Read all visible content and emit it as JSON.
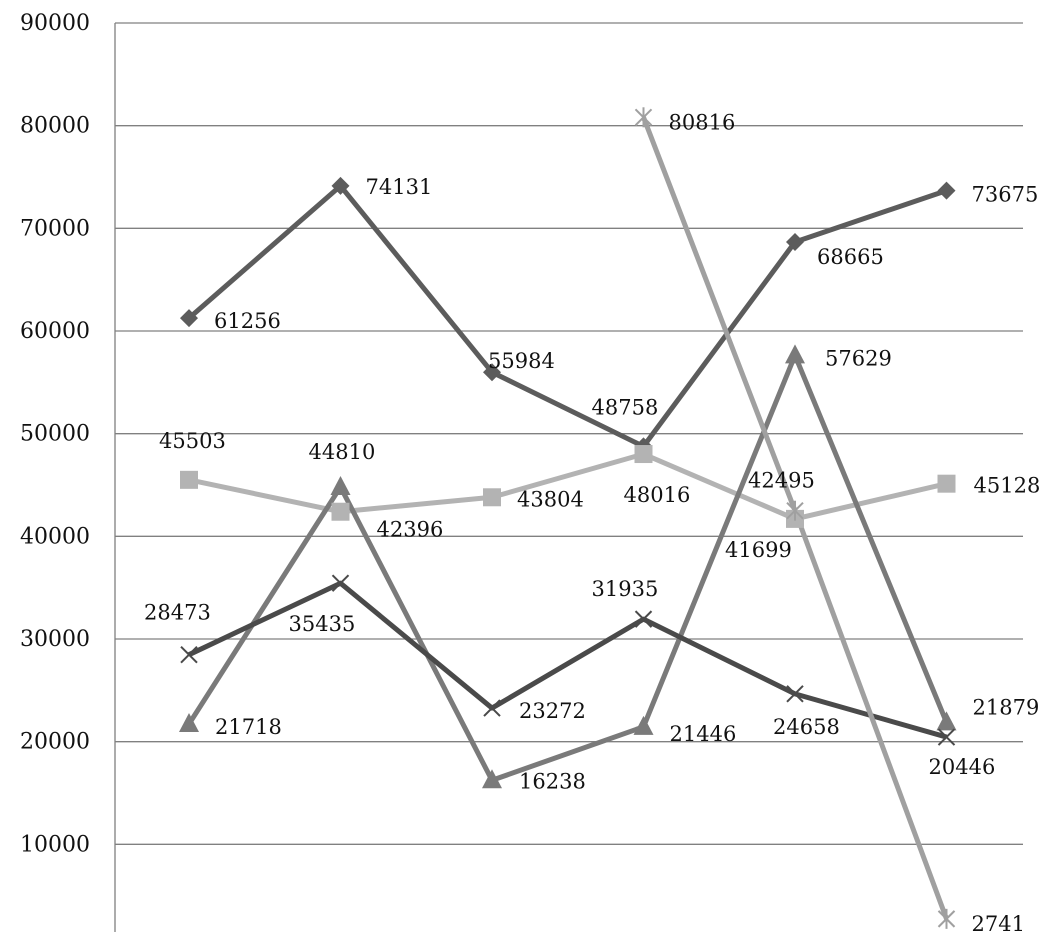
{
  "chart_data": {
    "type": "line",
    "title": "",
    "xlabel": "",
    "ylabel": "",
    "x_points": 6,
    "ylim": [
      0,
      90000
    ],
    "yticks": [
      "10000",
      "20000",
      "30000",
      "40000",
      "50000",
      "60000",
      "70000",
      "80000",
      "90000"
    ],
    "grid": true,
    "legend": "none",
    "series": [
      {
        "values": [
          61256,
          74131,
          55984,
          48758,
          68665,
          73675
        ],
        "marker": "diamond",
        "color": "#5c5c5c"
      },
      {
        "values": [
          45503,
          42396,
          43804,
          48016,
          41699,
          45128
        ],
        "marker": "square",
        "color": "#b3b3b3"
      },
      {
        "values": [
          21718,
          44810,
          16238,
          21446,
          57629,
          21879
        ],
        "marker": "triangle",
        "color": "#7a7a7a"
      },
      {
        "values": [
          28473,
          35435,
          23272,
          31935,
          24658,
          20446
        ],
        "marker": "x",
        "color": "#4a4a4a"
      },
      {
        "values": [
          null,
          null,
          null,
          80816,
          42495,
          2741
        ],
        "marker": "star",
        "color": "#a0a0a0"
      }
    ]
  }
}
